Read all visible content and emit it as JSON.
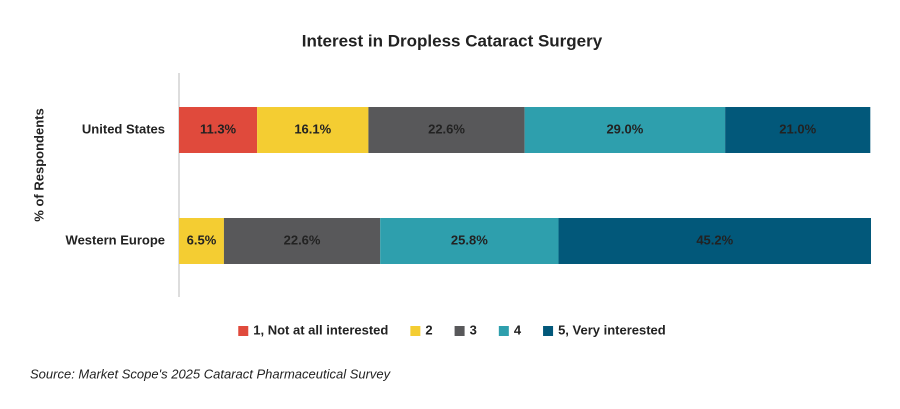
{
  "chart_data": {
    "type": "stacked-bar-horizontal",
    "title": "Interest in Dropless Cataract Surgery",
    "y_label": "% of Respondents",
    "categories": [
      "United States",
      "Western Europe"
    ],
    "series": [
      {
        "name": "1, Not at all interested",
        "color": "#e04a3c",
        "values": [
          11.3,
          0
        ],
        "value_labels": [
          "11.3%",
          null
        ]
      },
      {
        "name": "2",
        "color": "#f4cd32",
        "values": [
          16.1,
          6.5
        ],
        "value_labels": [
          "16.1%",
          "6.5%"
        ]
      },
      {
        "name": "3",
        "color": "#58585a",
        "values": [
          22.6,
          22.6
        ],
        "value_labels": [
          "22.6%",
          "22.6%"
        ]
      },
      {
        "name": "4",
        "color": "#2e9fad",
        "values": [
          29.0,
          25.8
        ],
        "value_labels": [
          "29.0%",
          "25.8%"
        ]
      },
      {
        "name": "5, Very interested",
        "color": "#02587a",
        "values": [
          21.0,
          45.2
        ],
        "value_labels": [
          "21.0%",
          "45.2%"
        ]
      }
    ],
    "source": "Source: Market Scope's 2025 Cataract Pharmaceutical Survey"
  }
}
